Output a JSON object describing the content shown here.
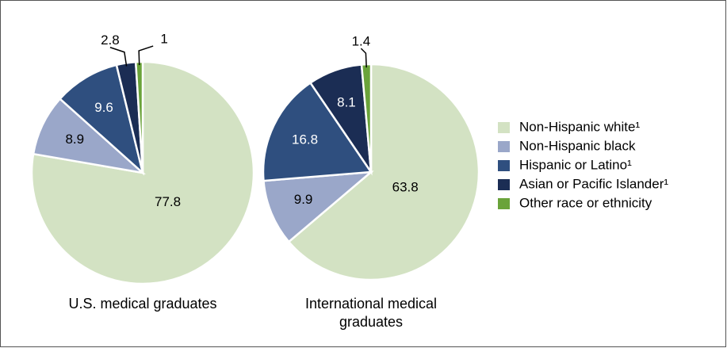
{
  "chart_data": [
    {
      "type": "pie",
      "title": "U.S. medical graduates",
      "categories": [
        "Non-Hispanic white¹",
        "Non-Hispanic black",
        "Hispanic or Latino¹",
        "Asian or Pacific Islander¹",
        "Other race or ethnicity"
      ],
      "colors": [
        "#d3e2c3",
        "#9aa7c9",
        "#2f4f7f",
        "#1b2d54",
        "#6aa33a"
      ],
      "values": [
        77.8,
        8.9,
        9.6,
        2.8,
        1.0
      ],
      "legend": "right"
    },
    {
      "type": "pie",
      "title": "International medical graduates",
      "categories": [
        "Non-Hispanic white¹",
        "Non-Hispanic black",
        "Hispanic or Latino¹",
        "Asian or Pacific Islander¹",
        "Other race or ethnicity"
      ],
      "colors": [
        "#d3e2c3",
        "#9aa7c9",
        "#2f4f7f",
        "#1b2d54",
        "#6aa33a"
      ],
      "values": [
        63.8,
        9.9,
        16.8,
        8.1,
        1.4
      ]
    }
  ]
}
